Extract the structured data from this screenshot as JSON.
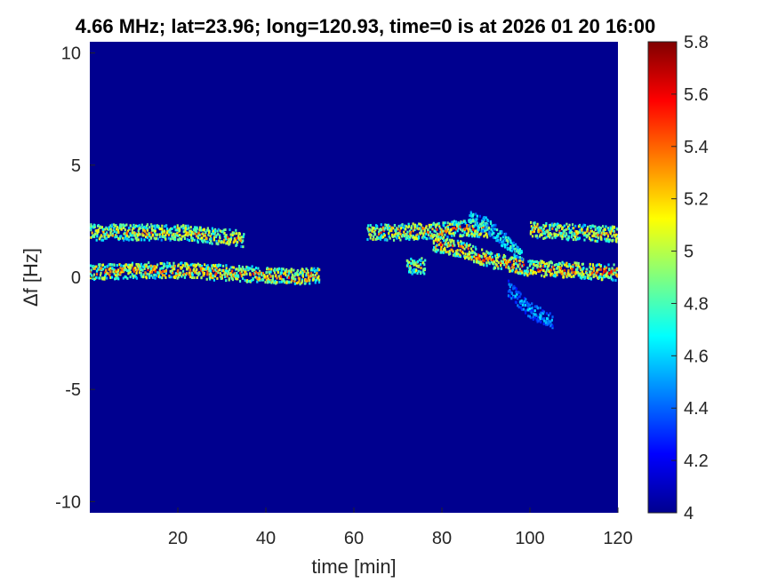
{
  "chart_data": {
    "type": "heatmap",
    "title": "4.66 MHz;  lat=23.96; long=120.93, time=0 is at 2026 01 20 16:00",
    "xlabel": "time [min]",
    "ylabel": "Δf [Hz]",
    "xlim": [
      0,
      120
    ],
    "ylim": [
      -10.5,
      10.5
    ],
    "x_ticks": [
      20,
      40,
      60,
      80,
      100,
      120
    ],
    "y_ticks": [
      -10,
      -5,
      0,
      5,
      10
    ],
    "colorbar": {
      "colormap": "jet",
      "range": [
        4,
        5.8
      ],
      "ticks": [
        4,
        4.2,
        4.4,
        4.6,
        4.8,
        5,
        5.2,
        5.4,
        5.6,
        5.8
      ]
    },
    "background_value": 4.0,
    "traces": [
      {
        "name": "",
        "points": [
          [
            0,
            2.0
          ],
          [
            10,
            2.0
          ],
          [
            20,
            2.0
          ],
          [
            30,
            1.8
          ],
          [
            35,
            1.7
          ]
        ],
        "peak": 5.5
      },
      {
        "name": "",
        "points": [
          [
            0,
            0.2
          ],
          [
            10,
            0.3
          ],
          [
            20,
            0.3
          ],
          [
            30,
            0.2
          ],
          [
            40,
            0.1
          ],
          [
            47,
            0.0
          ],
          [
            52,
            0.1
          ]
        ],
        "peak": 5.6
      },
      {
        "name": "",
        "points": [
          [
            63,
            2.0
          ],
          [
            70,
            2.0
          ],
          [
            80,
            2.1
          ],
          [
            85,
            2.2
          ],
          [
            90,
            2.1
          ]
        ],
        "peak": 5.6
      },
      {
        "name": "",
        "points": [
          [
            72,
            0.5
          ],
          [
            76,
            0.5
          ]
        ],
        "peak": 5.4
      },
      {
        "name": "",
        "points": [
          [
            78,
            1.5
          ],
          [
            85,
            1.2
          ],
          [
            90,
            0.8
          ],
          [
            95,
            0.6
          ],
          [
            100,
            0.4
          ],
          [
            110,
            0.3
          ],
          [
            120,
            0.2
          ]
        ],
        "peak": 5.7
      },
      {
        "name": "",
        "points": [
          [
            86,
            2.6
          ],
          [
            90,
            2.3
          ],
          [
            95,
            1.5
          ],
          [
            98,
            1.0
          ]
        ],
        "peak": 5.0
      },
      {
        "name": "",
        "points": [
          [
            100,
            2.1
          ],
          [
            110,
            2.0
          ],
          [
            120,
            1.9
          ]
        ],
        "peak": 5.5
      },
      {
        "name": "",
        "points": [
          [
            95,
            -0.5
          ],
          [
            100,
            -1.5
          ],
          [
            105,
            -2.0
          ]
        ],
        "peak": 4.7
      }
    ]
  }
}
